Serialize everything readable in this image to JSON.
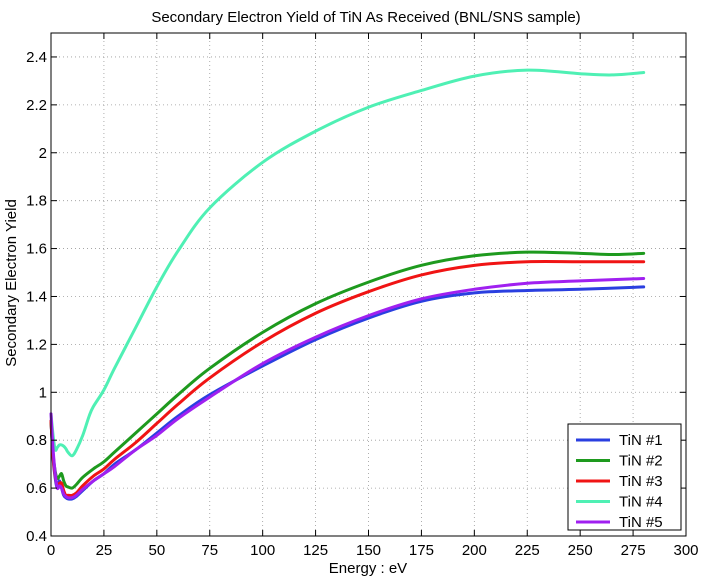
{
  "chart_data": {
    "type": "line",
    "title": "Secondary Electron Yield of TiN As Received (BNL/SNS sample)",
    "xlabel": "Energy : eV",
    "ylabel": "Secondary Electron Yield",
    "xlim": [
      0,
      300
    ],
    "ylim": [
      0.4,
      2.5
    ],
    "xticks": [
      0,
      25,
      50,
      75,
      100,
      125,
      150,
      175,
      200,
      225,
      250,
      275,
      300
    ],
    "yticks": [
      0.4,
      0.6,
      0.8,
      1,
      1.2,
      1.4,
      1.6,
      1.8,
      2,
      2.2,
      2.4
    ],
    "xtick_labels": [
      "0",
      "25",
      "50",
      "75",
      "100",
      "125",
      "150",
      "175",
      "200",
      "225",
      "250",
      "275",
      "300"
    ],
    "ytick_labels": [
      "0.4",
      "0.6",
      "0.8",
      "1",
      "1.2",
      "1.4",
      "1.6",
      "1.8",
      "2",
      "2.2",
      "2.4"
    ],
    "grid": true,
    "legend_position": "bottom-right",
    "series": [
      {
        "name": "TiN #1",
        "color": "#2a3fe0",
        "x": [
          0,
          1,
          2,
          3,
          4,
          5,
          6,
          7,
          8,
          10,
          12,
          15,
          20,
          25,
          30,
          40,
          50,
          60,
          75,
          100,
          125,
          150,
          175,
          200,
          225,
          250,
          280
        ],
        "y": [
          0.88,
          0.72,
          0.64,
          0.6,
          0.63,
          0.6,
          0.57,
          0.56,
          0.555,
          0.555,
          0.565,
          0.59,
          0.63,
          0.66,
          0.7,
          0.76,
          0.83,
          0.9,
          0.99,
          1.11,
          1.22,
          1.31,
          1.38,
          1.415,
          1.425,
          1.43,
          1.44
        ]
      },
      {
        "name": "TiN #2",
        "color": "#1e9a1e",
        "x": [
          0,
          1,
          2,
          3,
          4,
          5,
          6,
          7,
          8,
          10,
          12,
          15,
          20,
          25,
          30,
          40,
          50,
          60,
          75,
          100,
          125,
          150,
          175,
          200,
          225,
          250,
          265,
          280
        ],
        "y": [
          0.88,
          0.74,
          0.67,
          0.64,
          0.65,
          0.66,
          0.63,
          0.61,
          0.605,
          0.6,
          0.615,
          0.645,
          0.68,
          0.71,
          0.75,
          0.83,
          0.91,
          0.99,
          1.1,
          1.25,
          1.37,
          1.46,
          1.53,
          1.57,
          1.585,
          1.58,
          1.575,
          1.58
        ]
      },
      {
        "name": "TiN #3",
        "color": "#f01414",
        "x": [
          0,
          1,
          2,
          3,
          4,
          5,
          6,
          7,
          8,
          10,
          12,
          15,
          20,
          25,
          30,
          40,
          50,
          60,
          75,
          100,
          125,
          150,
          175,
          200,
          225,
          250,
          280
        ],
        "y": [
          0.88,
          0.73,
          0.65,
          0.61,
          0.62,
          0.62,
          0.59,
          0.57,
          0.57,
          0.57,
          0.58,
          0.61,
          0.65,
          0.68,
          0.72,
          0.79,
          0.87,
          0.95,
          1.06,
          1.21,
          1.33,
          1.42,
          1.49,
          1.53,
          1.545,
          1.545,
          1.545
        ]
      },
      {
        "name": "TiN #4",
        "color": "#4ff0b4",
        "x": [
          0,
          1,
          2,
          3,
          4,
          5,
          6,
          7,
          8,
          10,
          12,
          15,
          18,
          20,
          25,
          30,
          40,
          50,
          60,
          75,
          100,
          125,
          150,
          175,
          200,
          225,
          250,
          265,
          280
        ],
        "y": [
          0.91,
          0.82,
          0.76,
          0.77,
          0.78,
          0.78,
          0.775,
          0.765,
          0.75,
          0.735,
          0.76,
          0.82,
          0.9,
          0.94,
          1.01,
          1.1,
          1.27,
          1.44,
          1.59,
          1.77,
          1.96,
          2.09,
          2.19,
          2.26,
          2.32,
          2.345,
          2.33,
          2.325,
          2.335
        ]
      },
      {
        "name": "TiN #5",
        "color": "#a020f0",
        "x": [
          0,
          1,
          2,
          3,
          4,
          5,
          6,
          7,
          8,
          10,
          12,
          15,
          20,
          25,
          30,
          40,
          50,
          60,
          75,
          100,
          125,
          150,
          175,
          200,
          225,
          250,
          280
        ],
        "y": [
          0.91,
          0.76,
          0.66,
          0.6,
          0.61,
          0.6,
          0.575,
          0.565,
          0.56,
          0.56,
          0.57,
          0.595,
          0.63,
          0.66,
          0.69,
          0.76,
          0.82,
          0.89,
          0.98,
          1.12,
          1.23,
          1.32,
          1.39,
          1.43,
          1.455,
          1.465,
          1.475
        ]
      }
    ]
  }
}
